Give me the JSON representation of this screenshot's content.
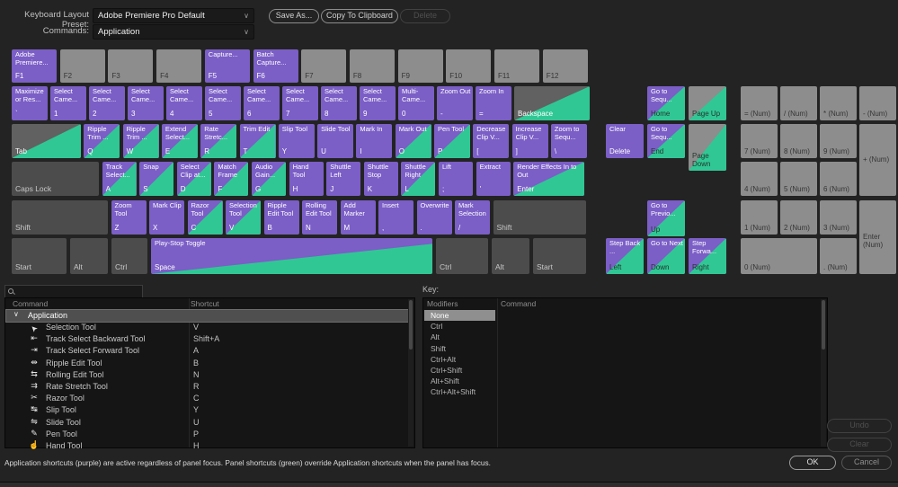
{
  "header": {
    "preset_label": "Keyboard Layout Preset:",
    "preset_value": "Adobe Premiere Pro Default",
    "commands_label": "Commands:",
    "commands_value": "Application",
    "save_as_label": "Save As...",
    "copy_label": "Copy To Clipboard",
    "delete_label": "Delete"
  },
  "colors": {
    "app_shortcut_purple": "#7b5ec6",
    "panel_shortcut_green": "#30c795",
    "unassigned_key_gray": "#8d8d8d",
    "modifier_key_gray": "#4c4c4c"
  },
  "keyboard": {
    "main_rows": [
      [
        {
          "cap": "F1",
          "label": "Adobe Premiere...",
          "type": "app"
        },
        {
          "cap": "F2",
          "type": "blank"
        },
        {
          "cap": "F3",
          "type": "blank"
        },
        {
          "cap": "F4",
          "type": "blank"
        },
        {
          "cap": "F5",
          "label": "Capture...",
          "type": "app"
        },
        {
          "cap": "F6",
          "label": "Batch Capture...",
          "type": "app"
        },
        {
          "cap": "F7",
          "type": "blank"
        },
        {
          "cap": "F8",
          "type": "blank"
        },
        {
          "cap": "F9",
          "type": "blank"
        },
        {
          "cap": "F10",
          "type": "blank"
        },
        {
          "cap": "F11",
          "type": "blank"
        },
        {
          "cap": "F12",
          "type": "blank"
        }
      ],
      [
        {
          "id": "grave",
          "cap": "`",
          "label": "Maximize or Res...",
          "type": "app"
        },
        {
          "cap": "1",
          "label": "Select Came...",
          "type": "app"
        },
        {
          "cap": "2",
          "label": "Select Came...",
          "type": "app"
        },
        {
          "cap": "3",
          "label": "Select Came...",
          "type": "app"
        },
        {
          "cap": "4",
          "label": "Select Came...",
          "type": "app"
        },
        {
          "cap": "5",
          "label": "Select Came...",
          "type": "app"
        },
        {
          "cap": "6",
          "label": "Select Came...",
          "type": "app"
        },
        {
          "cap": "7",
          "label": "Select Came...",
          "type": "app"
        },
        {
          "cap": "8",
          "label": "Select Came...",
          "type": "app"
        },
        {
          "cap": "9",
          "label": "Select Came...",
          "type": "app"
        },
        {
          "cap": "0",
          "label": "Multi-Came...",
          "type": "app"
        },
        {
          "id": "minus",
          "cap": "-",
          "label": "Zoom Out",
          "type": "app"
        },
        {
          "id": "equals",
          "cap": "=",
          "label": "Zoom In",
          "type": "app"
        },
        {
          "id": "backspace",
          "cap": "Backspace",
          "type": "sys",
          "green": true
        }
      ],
      [
        {
          "id": "tab",
          "cap": "Tab",
          "type": "sys",
          "green": true
        },
        {
          "cap": "Q",
          "label": "Ripple Trim ...",
          "type": "app",
          "green": true
        },
        {
          "cap": "W",
          "label": "Ripple Trim ...",
          "type": "app",
          "green": true
        },
        {
          "cap": "E",
          "label": "Extend Select...",
          "type": "app",
          "green": true
        },
        {
          "cap": "R",
          "label": "Rate Stretc...",
          "type": "app",
          "green": true
        },
        {
          "cap": "T",
          "label": "Trim Edit",
          "type": "app",
          "green": true
        },
        {
          "cap": "Y",
          "label": "Slip Tool",
          "type": "app"
        },
        {
          "cap": "U",
          "label": "Slide Tool",
          "type": "app"
        },
        {
          "cap": "I",
          "label": "Mark In",
          "type": "app"
        },
        {
          "cap": "O",
          "label": "Mark Out",
          "type": "app",
          "green": true
        },
        {
          "cap": "P",
          "label": "Pen Tool",
          "type": "app",
          "green": true
        },
        {
          "id": "open-bracket",
          "cap": "[",
          "label": "Decrease Clip V...",
          "type": "app"
        },
        {
          "id": "close-bracket",
          "cap": "]",
          "label": "Increase Clip V...",
          "type": "app"
        },
        {
          "id": "backslash",
          "cap": "\\",
          "label": "Zoom to Sequ...",
          "type": "app"
        }
      ],
      [
        {
          "id": "caps-lock",
          "cap": "Caps Lock",
          "type": "mod"
        },
        {
          "cap": "A",
          "label": "Track Select...",
          "type": "app",
          "green": true
        },
        {
          "cap": "S",
          "label": "Snap",
          "type": "app",
          "green": true
        },
        {
          "cap": "D",
          "label": "Select Clip at...",
          "type": "app",
          "green": true
        },
        {
          "cap": "F",
          "label": "Match Frame",
          "type": "app",
          "green": true
        },
        {
          "cap": "G",
          "label": "Audio Gain...",
          "type": "app",
          "green": true
        },
        {
          "cap": "H",
          "label": "Hand Tool",
          "type": "app"
        },
        {
          "cap": "J",
          "label": "Shuttle Left",
          "type": "app"
        },
        {
          "cap": "K",
          "label": "Shuttle Stop",
          "type": "app"
        },
        {
          "cap": "L",
          "label": "Shuttle Right",
          "type": "app",
          "green": true
        },
        {
          "id": "semicolon",
          "cap": ";",
          "label": "Lift",
          "type": "app"
        },
        {
          "id": "quote",
          "cap": "'",
          "label": "Extract",
          "type": "app"
        },
        {
          "id": "enter",
          "cap": "Enter",
          "label": "Render Effects In to Out",
          "type": "app",
          "green": true
        }
      ],
      [
        {
          "id": "shift-left",
          "cap": "Shift",
          "type": "mod"
        },
        {
          "cap": "Z",
          "label": "Zoom Tool",
          "type": "app"
        },
        {
          "cap": "X",
          "label": "Mark Clip",
          "type": "app"
        },
        {
          "cap": "C",
          "label": "Razor Tool",
          "type": "app",
          "green": true
        },
        {
          "cap": "V",
          "label": "Selection Tool",
          "type": "app",
          "green": true
        },
        {
          "cap": "B",
          "label": "Ripple Edit Tool",
          "type": "app"
        },
        {
          "cap": "N",
          "label": "Rolling Edit Tool",
          "type": "app"
        },
        {
          "cap": "M",
          "label": "Add Marker",
          "type": "app"
        },
        {
          "id": "comma",
          "cap": ",",
          "label": "Insert",
          "type": "app"
        },
        {
          "id": "period",
          "cap": ".",
          "label": "Overwrite",
          "type": "app"
        },
        {
          "id": "slash",
          "cap": "/",
          "label": "Mark Selection",
          "type": "app"
        },
        {
          "id": "shift-right",
          "cap": "Shift",
          "type": "mod"
        }
      ],
      [
        {
          "id": "start-left",
          "cap": "Start",
          "type": "mod"
        },
        {
          "id": "alt-left",
          "cap": "Alt",
          "type": "mod"
        },
        {
          "id": "ctrl-left",
          "cap": "Ctrl",
          "type": "mod"
        },
        {
          "id": "space",
          "cap": "Space",
          "label": "Play-Stop Toggle",
          "type": "app",
          "green": true,
          "space": true
        },
        {
          "id": "ctrl-right",
          "cap": "Ctrl",
          "type": "mod"
        },
        {
          "id": "alt-right",
          "cap": "Alt",
          "type": "mod"
        },
        {
          "id": "start-right",
          "cap": "Start",
          "type": "mod"
        }
      ]
    ],
    "nav_keys": [
      {
        "id": "home",
        "cap": "Home",
        "label": "Go to Sequ...",
        "type": "app",
        "green": true,
        "darkcap": true
      },
      {
        "id": "page-up",
        "cap": "Page Up",
        "type": "blank",
        "green": true,
        "darkcap": true
      },
      {
        "id": "delete",
        "cap": "Delete",
        "label": "Clear",
        "type": "app"
      },
      {
        "id": "end",
        "cap": "End",
        "label": "Go to Sequ...",
        "type": "app",
        "green": true,
        "darkcap": true
      },
      {
        "id": "page-down",
        "cap": "Page Down",
        "type": "blank",
        "green": true,
        "darkcap": true
      },
      {
        "id": "up",
        "cap": "Up",
        "label": "Go to Previo...",
        "type": "app",
        "green": true,
        "darkcap": true
      },
      {
        "id": "left",
        "cap": "Left",
        "label": "Step Back ...",
        "type": "app",
        "green": true,
        "darkcap": true
      },
      {
        "id": "down",
        "cap": "Down",
        "label": "Go to Next",
        "type": "app",
        "green": true,
        "darkcap": true
      },
      {
        "id": "right",
        "cap": "Right",
        "label": "Step Forwa...",
        "type": "app",
        "green": true,
        "darkcap": true
      }
    ],
    "numpad_keys": [
      "= (Num)",
      "/ (Num)",
      "* (Num)",
      "- (Num)",
      "7 (Num)",
      "8 (Num)",
      "9 (Num)",
      "+ (Num)",
      "4 (Num)",
      "5 (Num)",
      "6 (Num)",
      "1 (Num)",
      "2 (Num)",
      "3 (Num)",
      "Enter (Num)",
      "0 (Num)",
      ". (Num)"
    ]
  },
  "bottom": {
    "search_placeholder": "",
    "command_header": "Command",
    "shortcut_header": "Shortcut",
    "tree_root": "Application",
    "commands": [
      {
        "icon": "selection-tool-icon",
        "glyph": "➤",
        "name": "Selection Tool",
        "shortcut": "V"
      },
      {
        "icon": "track-select-backward-icon",
        "glyph": "⇤",
        "name": "Track Select Backward Tool",
        "shortcut": "Shift+A"
      },
      {
        "icon": "track-select-forward-icon",
        "glyph": "⇥",
        "name": "Track Select Forward Tool",
        "shortcut": "A"
      },
      {
        "icon": "ripple-edit-icon",
        "glyph": "⇹",
        "name": "Ripple Edit Tool",
        "shortcut": "B"
      },
      {
        "icon": "rolling-edit-icon",
        "glyph": "⇆",
        "name": "Rolling Edit Tool",
        "shortcut": "N"
      },
      {
        "icon": "rate-stretch-icon",
        "glyph": "⇉",
        "name": "Rate Stretch Tool",
        "shortcut": "R"
      },
      {
        "icon": "razor-icon",
        "glyph": "✂",
        "name": "Razor Tool",
        "shortcut": "C"
      },
      {
        "icon": "slip-icon",
        "glyph": "↹",
        "name": "Slip Tool",
        "shortcut": "Y"
      },
      {
        "icon": "slide-icon",
        "glyph": "⇋",
        "name": "Slide Tool",
        "shortcut": "U"
      },
      {
        "icon": "pen-icon",
        "glyph": "✎",
        "name": "Pen Tool",
        "shortcut": "P"
      },
      {
        "icon": "hand-icon",
        "glyph": "☝",
        "name": "Hand Tool",
        "shortcut": "H"
      }
    ],
    "key_label": "Key:",
    "modifiers_header": "Modifiers",
    "modifier_command_header": "Command",
    "modifiers": [
      "None",
      "Ctrl",
      "Alt",
      "Shift",
      "Ctrl+Alt",
      "Ctrl+Shift",
      "Alt+Shift",
      "Ctrl+Alt+Shift"
    ],
    "undo_label": "Undo",
    "clear_label": "Clear"
  },
  "footer": {
    "note": "Application shortcuts (purple) are active regardless of panel focus. Panel shortcuts (green) override Application shortcuts when the panel has focus.",
    "ok_label": "OK",
    "cancel_label": "Cancel"
  }
}
